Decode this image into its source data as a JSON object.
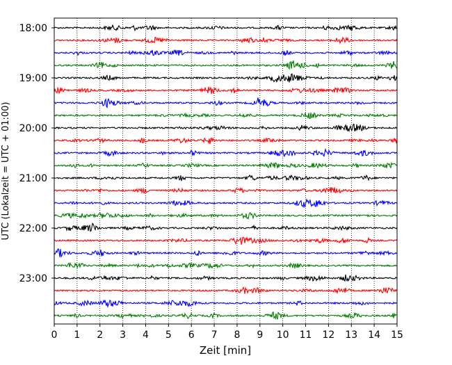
{
  "chart_data": {
    "type": "line",
    "title": "",
    "xlabel": "Zeit  [min]",
    "ylabel": "UTC (Lokalzeit = UTC + 01:00)",
    "xlim": [
      0,
      15
    ],
    "x_ticks": [
      0,
      1,
      2,
      3,
      4,
      5,
      6,
      7,
      8,
      9,
      10,
      11,
      12,
      13,
      14,
      15
    ],
    "x_tick_labels": [
      "0",
      "1",
      "2",
      "3",
      "4",
      "5",
      "6",
      "7",
      "8",
      "9",
      "10",
      "11",
      "12",
      "13",
      "14",
      "15"
    ],
    "y_tick_labels": [
      "18:00",
      "19:00",
      "20:00",
      "21:00",
      "22:00",
      "23:00"
    ],
    "x_grid": true,
    "grid_style": "dotted",
    "color_cycle": [
      "#000000",
      "#ff0000",
      "#0000ff",
      "#008000"
    ],
    "trace_interval_minutes": 15,
    "traces_start": "18:00",
    "traces_end": "23:45"
  }
}
